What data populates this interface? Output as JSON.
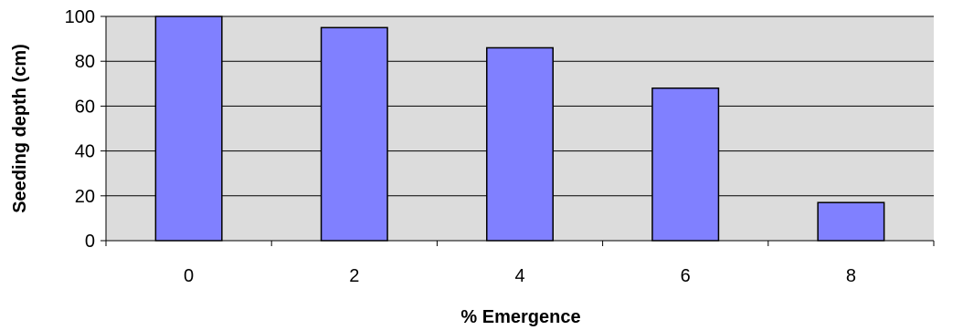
{
  "chart_data": {
    "type": "bar",
    "categories": [
      "0",
      "2",
      "4",
      "6",
      "8"
    ],
    "values": [
      100,
      95,
      86,
      68,
      17
    ],
    "xlabel": "% Emergence",
    "ylabel": "Seeding depth (cm)",
    "ylim": [
      0,
      100
    ],
    "yticks": [
      "0",
      "20",
      "40",
      "60",
      "80",
      "100"
    ],
    "grid": true,
    "legend": "none",
    "colors": {
      "plot_background": "#dcdcdc",
      "bar_fill": "#8080ff",
      "bar_stroke": "#000000",
      "gridline": "#000000"
    }
  }
}
